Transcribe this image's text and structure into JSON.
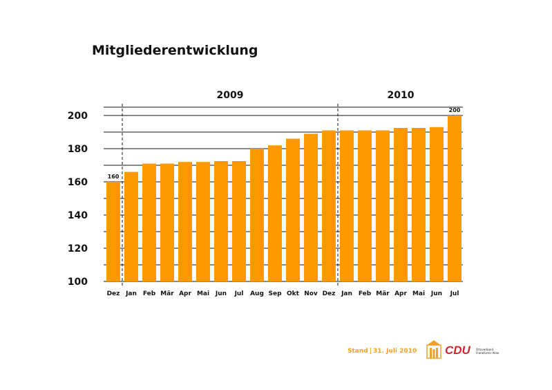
{
  "title": "Mitgliederentwicklung",
  "footer": {
    "stand_label": "Stand",
    "date": "31. Juli 2010"
  },
  "logo": {
    "party": "CDU",
    "subtitle_line1": "Ortsverband",
    "subtitle_line2": "Frankfurter Allee"
  },
  "colors": {
    "bar": "#ff9900",
    "footer_text": "#f2a02a",
    "logo_red": "#d1232a"
  },
  "chart_data": {
    "type": "bar",
    "title": "Mitgliederentwicklung",
    "xlabel": "",
    "ylabel": "",
    "ylim": [
      100,
      205
    ],
    "yticks": [
      100,
      120,
      140,
      160,
      180,
      200
    ],
    "grid": true,
    "year_groups": [
      {
        "label": "2009",
        "start": 1,
        "end": 12
      },
      {
        "label": "2010",
        "start": 13,
        "end": 19
      }
    ],
    "categories": [
      "Dez",
      "Jan",
      "Feb",
      "Mär",
      "Apr",
      "Mai",
      "Jun",
      "Jul",
      "Aug",
      "Sep",
      "Okt",
      "Nov",
      "Dez",
      "Jan",
      "Feb",
      "Mär",
      "Apr",
      "Mai",
      "Jun",
      "Jul"
    ],
    "values": [
      160,
      166,
      171,
      171,
      172,
      172,
      172.5,
      172.5,
      180,
      182,
      186,
      189,
      191,
      191,
      191,
      191,
      192.5,
      192.5,
      193,
      200
    ],
    "data_labels": [
      {
        "index": 0,
        "text": "160"
      },
      {
        "index": 19,
        "text": "200"
      }
    ]
  }
}
